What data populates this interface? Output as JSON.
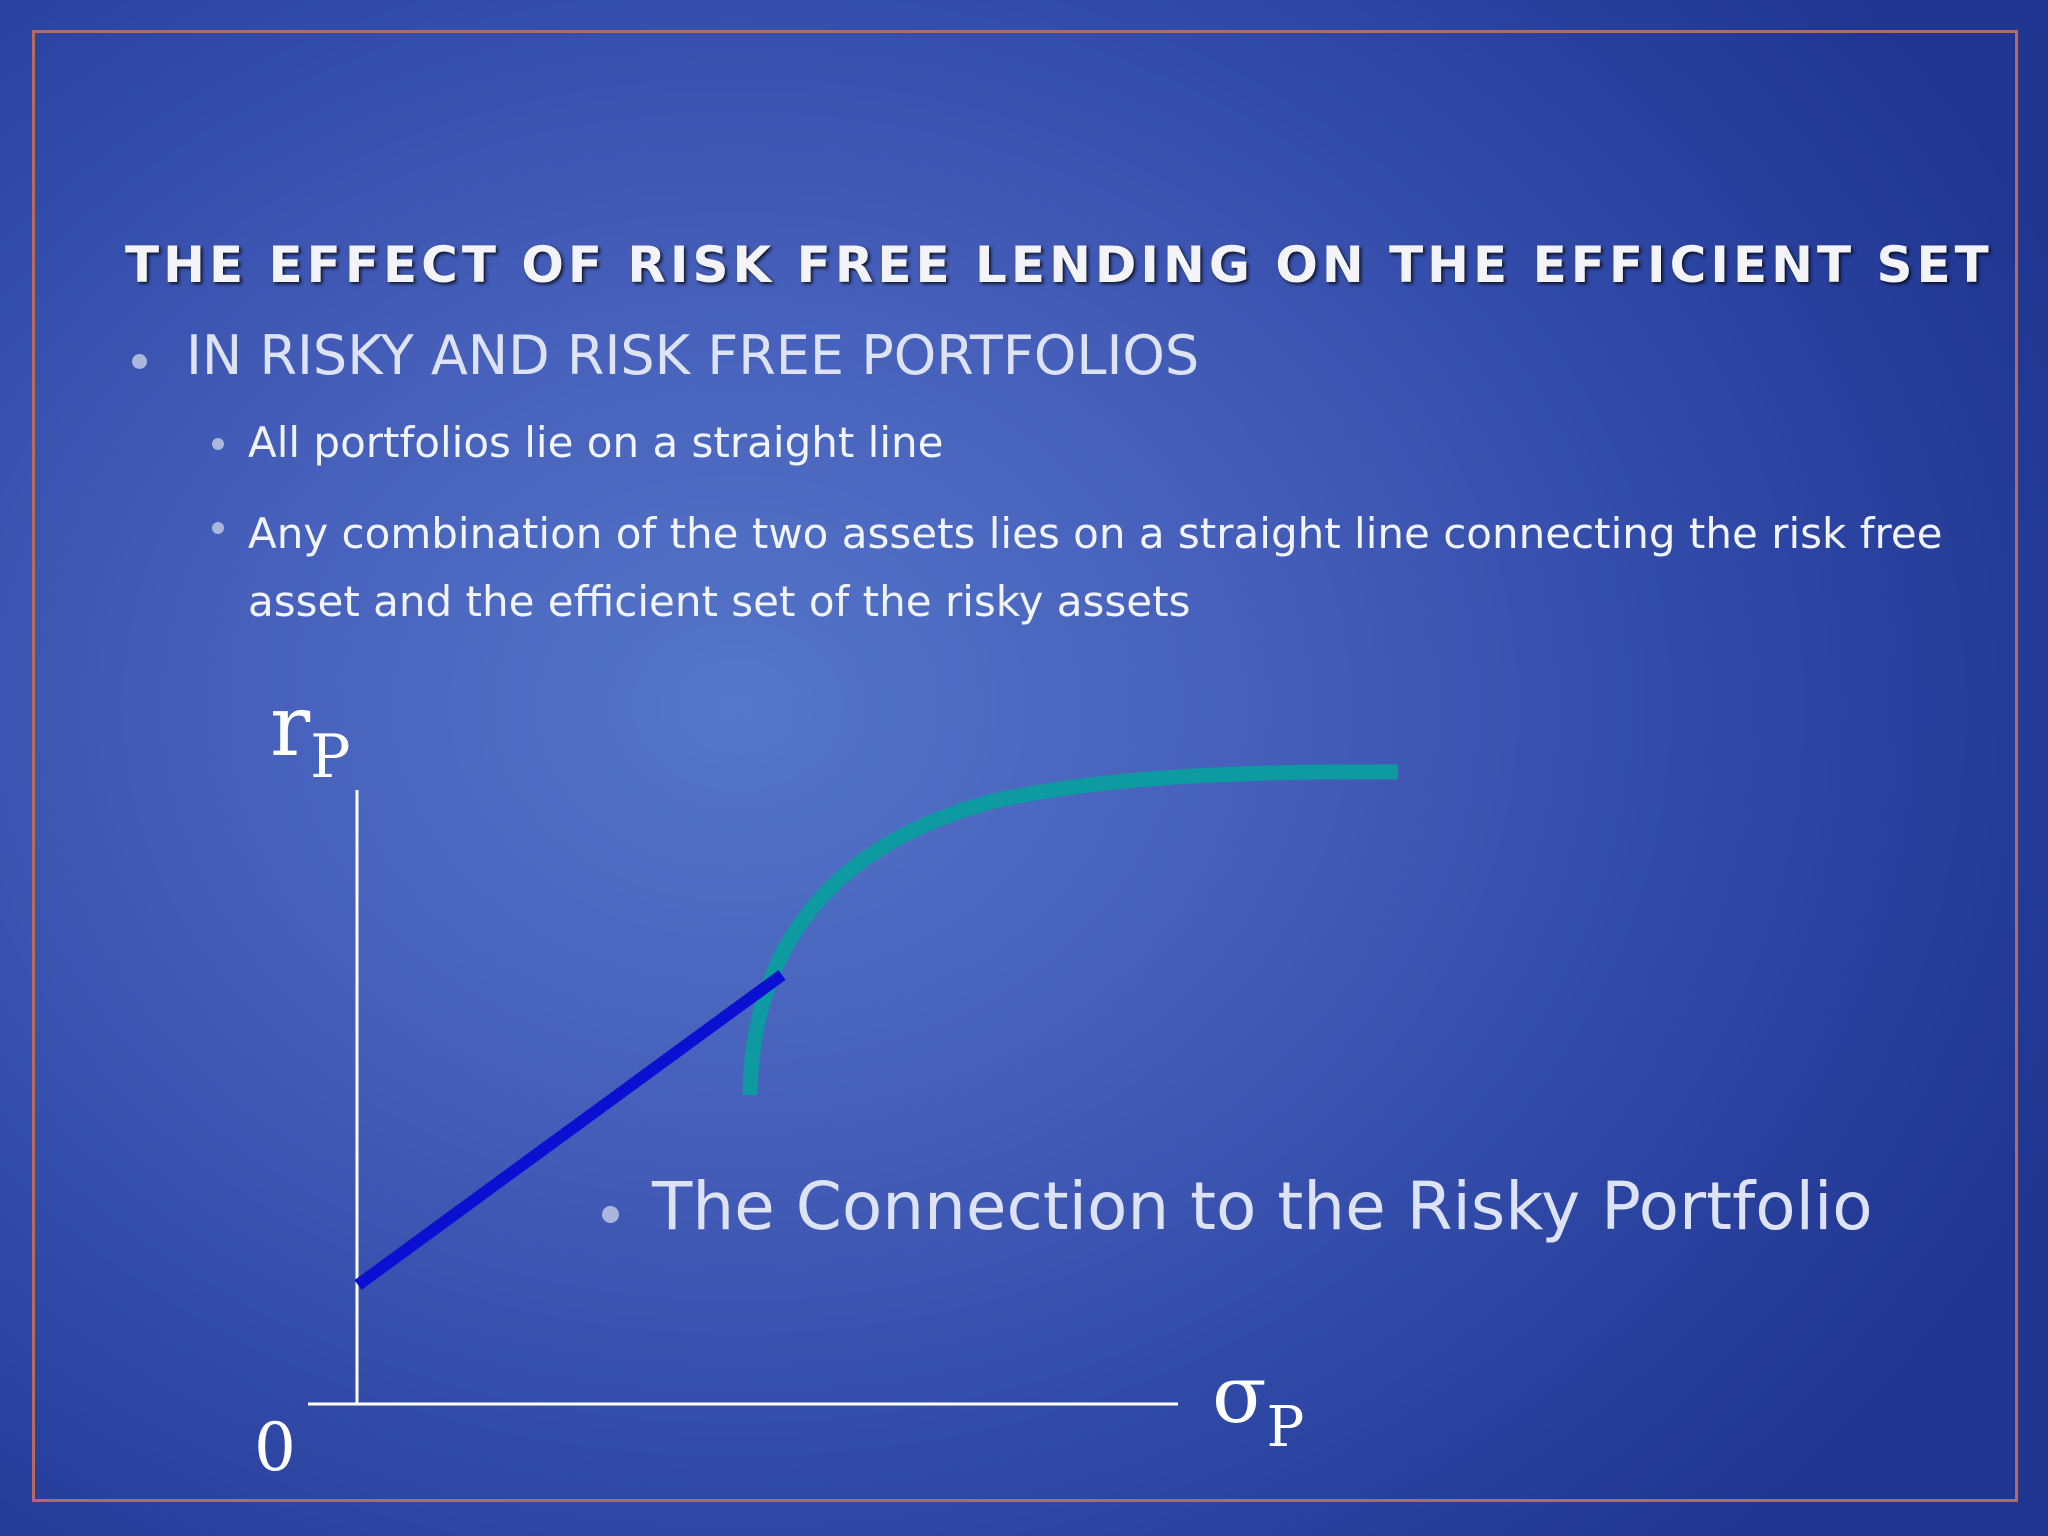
{
  "slide": {
    "title": "THE EFFECT OF RISK FREE LENDING ON THE EFFICIENT SET",
    "bullet_main": "IN RISKY AND RISK FREE PORTFOLIOS",
    "sub_bullets": [
      "All portfolios lie on a straight line",
      "Any combination of the two assets lies on a straight line connecting the risk free asset and the efficient set of the risky assets"
    ],
    "callout": "The Connection to the Risky Portfolio"
  },
  "diagram": {
    "y_label": "r",
    "y_label_sub": "P",
    "x_label": "σ",
    "x_label_sub": "P",
    "origin_label": "0"
  },
  "colors": {
    "efficient_frontier": "#0d9aa0",
    "risk_free_line": "#0a0fd2",
    "axes": "#ffffff",
    "frame": "#b86a5a"
  }
}
